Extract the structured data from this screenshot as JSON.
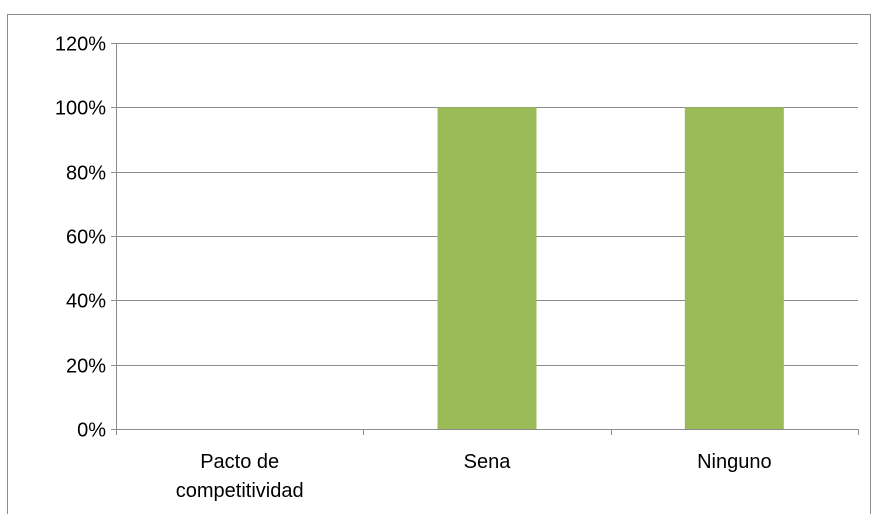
{
  "chart_data": {
    "type": "bar",
    "categories": [
      [
        "Pacto de",
        "competitividad"
      ],
      [
        "Sena"
      ],
      [
        "Ninguno"
      ]
    ],
    "values": [
      0,
      100,
      100
    ],
    "ylim": [
      0,
      120
    ],
    "y_ticks": [
      "0%",
      "20%",
      "40%",
      "60%",
      "80%",
      "100%",
      "120%"
    ],
    "y_tick_values": [
      0,
      20,
      40,
      60,
      80,
      100,
      120
    ],
    "grid": true,
    "legend": "none",
    "bar_color": "#9bbb59",
    "grid_color": "#8c8c8c",
    "axis_color": "#8c8c8c"
  }
}
